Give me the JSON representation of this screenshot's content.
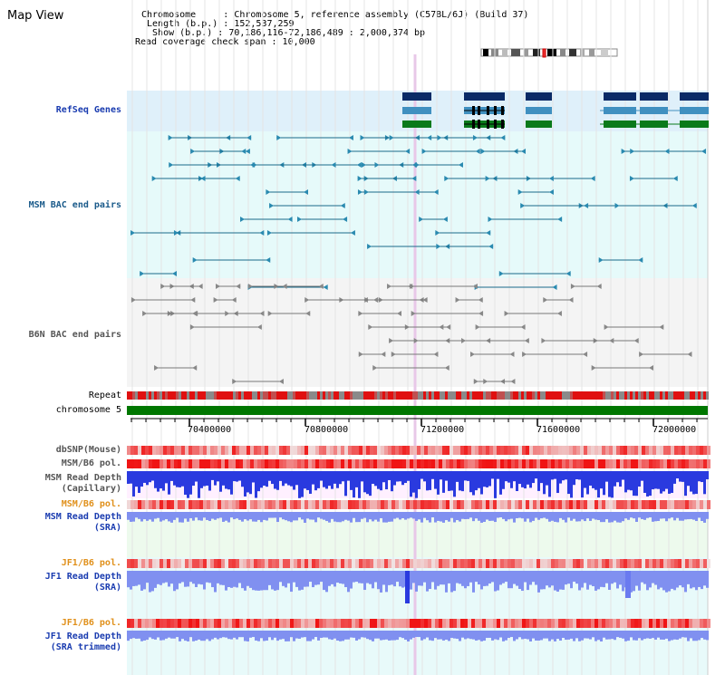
{
  "header": {
    "title": "Map View",
    "chromosome": "Chromosome     : Chromosome 5, reference assembly (C57BL/6J) (Build 37)",
    "length": " Length (b.p.) : 152,537,259",
    "show": "  Show (b.p.) : 70,186,116-72,186,489 : 2,000,374 bp",
    "coverage": "Read coverage check span : 10,000"
  },
  "tracks": {
    "refseq": "RefSeq Genes",
    "msm_bac": "MSM BAC end pairs",
    "b6n_bac": "B6N BAC end pairs",
    "repeat": "Repeat",
    "chromosome": "chromosome 5",
    "dbsnp": "dbSNP(Mouse)",
    "msm_pol": "MSM/B6 pol.",
    "msm_depth_cap_1": "MSM Read Depth",
    "msm_depth_cap_2": "(Capillary)",
    "msm_pol2": "MSM/B6 pol.",
    "msm_depth_sra_1": "MSM Read Depth",
    "msm_depth_sra_2": "(SRA)",
    "jf1_pol": "JF1/B6 pol.",
    "jf1_depth_1": "JF1 Read Depth",
    "jf1_depth_2": "(SRA)",
    "jf1_pol2": "JF1/B6 pol.",
    "jf1_trim_1": "JF1 Read Depth",
    "jf1_trim_2": "(SRA trimmed)"
  },
  "axis": {
    "ticks": [
      "70400000",
      "70800000",
      "71200000",
      "71600000",
      "72000000"
    ]
  },
  "colors": {
    "refseq_bg": "#dff0fa",
    "bac_bg": "#e6fafa",
    "lower_bg": "#e8fafa",
    "gene_dark": "#0a2a66",
    "gene_mid": "#4090c0",
    "gene_green": "#0a7a1a",
    "chrom_bar": "#007700",
    "depth_blue": "#2a3adf",
    "depth_light": "#8090f0"
  }
}
